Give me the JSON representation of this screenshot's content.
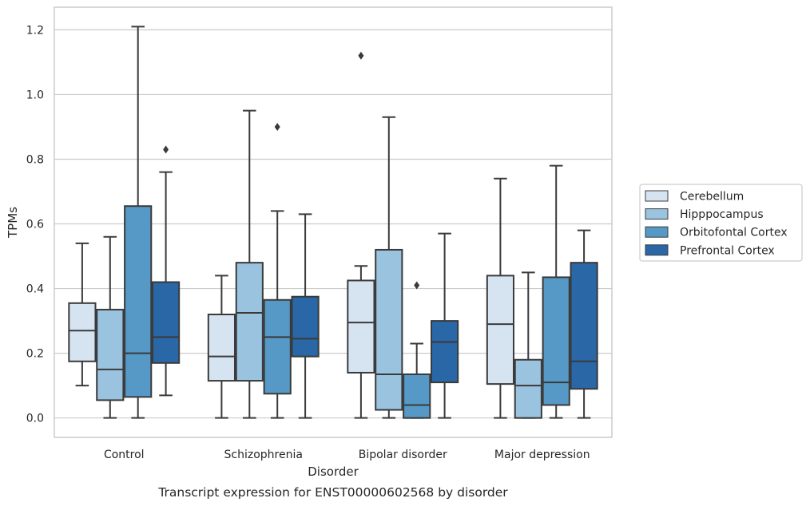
{
  "chart_data": {
    "type": "boxplot",
    "title": "",
    "caption": "Transcript expression for ENST00000602568 by disorder",
    "xlabel": "Disorder",
    "ylabel": "TPMs",
    "ylim": [
      -0.06,
      1.27
    ],
    "yticks": [
      0.0,
      0.2,
      0.4,
      0.6,
      0.8,
      1.0,
      1.2
    ],
    "ytick_labels": [
      "0.0",
      "0.2",
      "0.4",
      "0.6",
      "0.8",
      "1.0",
      "1.2"
    ],
    "grid": "horizontal",
    "legend_position": "right",
    "categories": [
      "Control",
      "Schizophrenia",
      "Bipolar disorder",
      "Major depression"
    ],
    "series": [
      {
        "name": "Cerebellum",
        "color": "#d6e4f2",
        "boxes": [
          {
            "whislo": 0.1,
            "q1": 0.175,
            "med": 0.27,
            "q3": 0.355,
            "whishi": 0.54,
            "fliers": []
          },
          {
            "whislo": 0.0,
            "q1": 0.115,
            "med": 0.19,
            "q3": 0.32,
            "whishi": 0.44,
            "fliers": []
          },
          {
            "whislo": 0.0,
            "q1": 0.14,
            "med": 0.295,
            "q3": 0.425,
            "whishi": 0.47,
            "fliers": [
              1.12
            ]
          },
          {
            "whislo": 0.0,
            "q1": 0.105,
            "med": 0.29,
            "q3": 0.44,
            "whishi": 0.74,
            "fliers": []
          }
        ]
      },
      {
        "name": "Hipppocampus",
        "color": "#9ac3df",
        "boxes": [
          {
            "whislo": 0.0,
            "q1": 0.055,
            "med": 0.15,
            "q3": 0.335,
            "whishi": 0.56,
            "fliers": []
          },
          {
            "whislo": 0.0,
            "q1": 0.115,
            "med": 0.325,
            "q3": 0.48,
            "whishi": 0.95,
            "fliers": []
          },
          {
            "whislo": 0.0,
            "q1": 0.025,
            "med": 0.135,
            "q3": 0.52,
            "whishi": 0.93,
            "fliers": []
          },
          {
            "whislo": 0.0,
            "q1": 0.0,
            "med": 0.1,
            "q3": 0.18,
            "whishi": 0.45,
            "fliers": []
          }
        ]
      },
      {
        "name": "Orbitofontal Cortex",
        "color": "#5699c6",
        "boxes": [
          {
            "whislo": 0.0,
            "q1": 0.065,
            "med": 0.2,
            "q3": 0.655,
            "whishi": 1.21,
            "fliers": []
          },
          {
            "whislo": 0.0,
            "q1": 0.075,
            "med": 0.25,
            "q3": 0.365,
            "whishi": 0.64,
            "fliers": [
              0.9
            ]
          },
          {
            "whislo": 0.0,
            "q1": 0.0,
            "med": 0.04,
            "q3": 0.135,
            "whishi": 0.23,
            "fliers": [
              0.41
            ]
          },
          {
            "whislo": 0.0,
            "q1": 0.04,
            "med": 0.11,
            "q3": 0.435,
            "whishi": 0.78,
            "fliers": []
          }
        ]
      },
      {
        "name": "Prefrontal Cortex",
        "color": "#2a67a7",
        "boxes": [
          {
            "whislo": 0.07,
            "q1": 0.17,
            "med": 0.25,
            "q3": 0.42,
            "whishi": 0.76,
            "fliers": [
              0.83
            ]
          },
          {
            "whislo": 0.0,
            "q1": 0.19,
            "med": 0.245,
            "q3": 0.375,
            "whishi": 0.63,
            "fliers": []
          },
          {
            "whislo": 0.0,
            "q1": 0.11,
            "med": 0.235,
            "q3": 0.3,
            "whishi": 0.57,
            "fliers": []
          },
          {
            "whislo": 0.0,
            "q1": 0.09,
            "med": 0.175,
            "q3": 0.48,
            "whishi": 0.58,
            "fliers": []
          }
        ]
      }
    ]
  },
  "colors": {
    "edge": "#3a3a3a",
    "grid": "#cccccc",
    "frame": "#cccccc"
  }
}
